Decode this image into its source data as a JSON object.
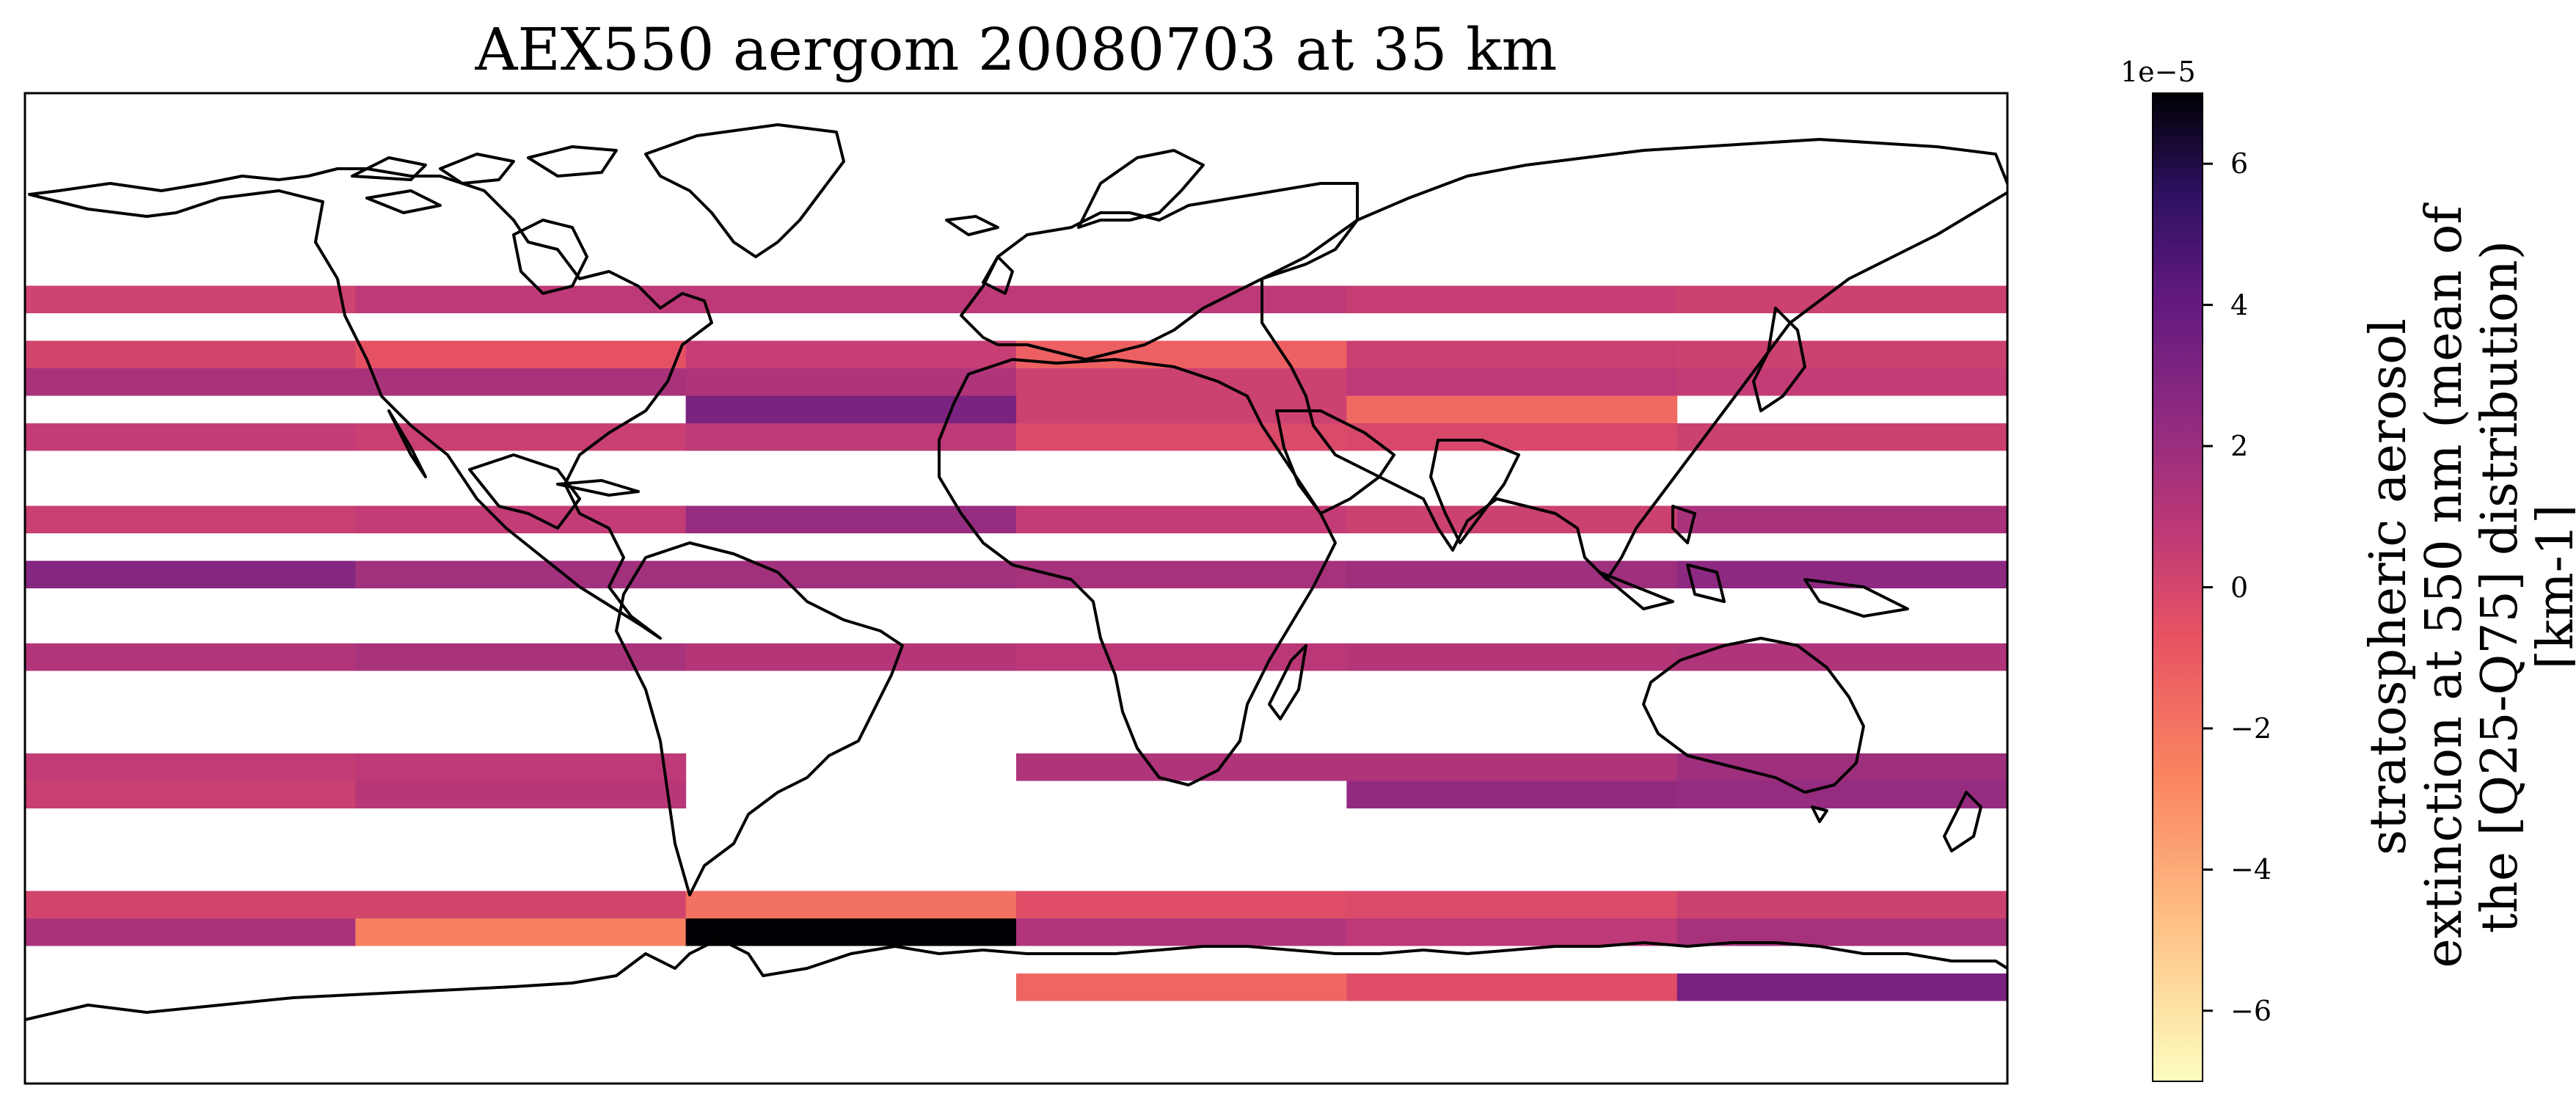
{
  "title": "AEX550 aergom 20080703 at 35 km",
  "colorbar": {
    "exponent_label": "1e−5",
    "min": -7,
    "max": 7,
    "ticks": [
      {
        "value": 6,
        "label": "6"
      },
      {
        "value": 4,
        "label": "4"
      },
      {
        "value": 2,
        "label": "2"
      },
      {
        "value": 0,
        "label": "0"
      },
      {
        "value": -2,
        "label": "−2"
      },
      {
        "value": -4,
        "label": "−4"
      },
      {
        "value": -6,
        "label": "−6"
      }
    ],
    "label_lines": [
      "stratospheric aerosol",
      "extinction at 550 nm (mean of",
      "the [Q25-Q75] distribution)",
      "[km-1]"
    ],
    "colormap": "magma_r",
    "colors": {
      "low": "#fcfdbf",
      "mid_low": "#fe9f6d",
      "mid": "#de4968",
      "mid_high": "#8c2981",
      "high": "#3b0f70",
      "top": "#000004"
    }
  },
  "map_extent": {
    "lon": [
      -180,
      180
    ],
    "lat": [
      -90,
      90
    ]
  },
  "lon_bins": [
    -180,
    -120,
    -60,
    0,
    60,
    120,
    180
  ],
  "chart_data": {
    "type": "heatmap",
    "units": "1e-5 km-1",
    "cells": [
      {
        "lat": [
          50,
          55
        ],
        "values": [
          0.2,
          0.8,
          0.8,
          0.8,
          0.5,
          0.3
        ]
      },
      {
        "lat": [
          40,
          45
        ],
        "values": [
          0.1,
          -0.6,
          0.5,
          -1.2,
          0.4,
          0.3
        ]
      },
      {
        "lat": [
          35,
          40
        ],
        "values": [
          1.5,
          1.5,
          1.3,
          0.3,
          0.8,
          0.6
        ]
      },
      {
        "lat": [
          30,
          35
        ],
        "values": [
          null,
          null,
          3.2,
          0.3,
          -1.6,
          null
        ]
      },
      {
        "lat": [
          25,
          30
        ],
        "values": [
          0.6,
          0.4,
          0.8,
          -0.2,
          -0.1,
          0.3
        ]
      },
      {
        "lat": [
          10,
          15
        ],
        "values": [
          0.4,
          0.6,
          2.2,
          0.6,
          0.3,
          1.5
        ]
      },
      {
        "lat": [
          0,
          5
        ],
        "values": [
          2.8,
          1.8,
          1.8,
          1.6,
          1.9,
          2.5
        ]
      },
      {
        "lat": [
          -15,
          -10
        ],
        "values": [
          1.2,
          1.5,
          1.1,
          0.9,
          1.1,
          1.3
        ]
      },
      {
        "lat": [
          -35,
          -30
        ],
        "values": [
          0.6,
          0.8,
          null,
          1.3,
          1.3,
          1.9
        ]
      },
      {
        "lat": [
          -40,
          -35
        ],
        "values": [
          0.4,
          1.0,
          null,
          null,
          2.3,
          2.2
        ]
      },
      {
        "lat": [
          -60,
          -55
        ],
        "values": [
          0.1,
          0.1,
          -1.9,
          -0.4,
          -0.2,
          0.3
        ]
      },
      {
        "lat": [
          -65,
          -60
        ],
        "values": [
          1.5,
          -2.5,
          7.0,
          1.2,
          0.8,
          1.6
        ]
      },
      {
        "lat": [
          -75,
          -70
        ],
        "values": [
          null,
          null,
          null,
          -1.4,
          -0.4,
          3.2
        ]
      }
    ]
  }
}
